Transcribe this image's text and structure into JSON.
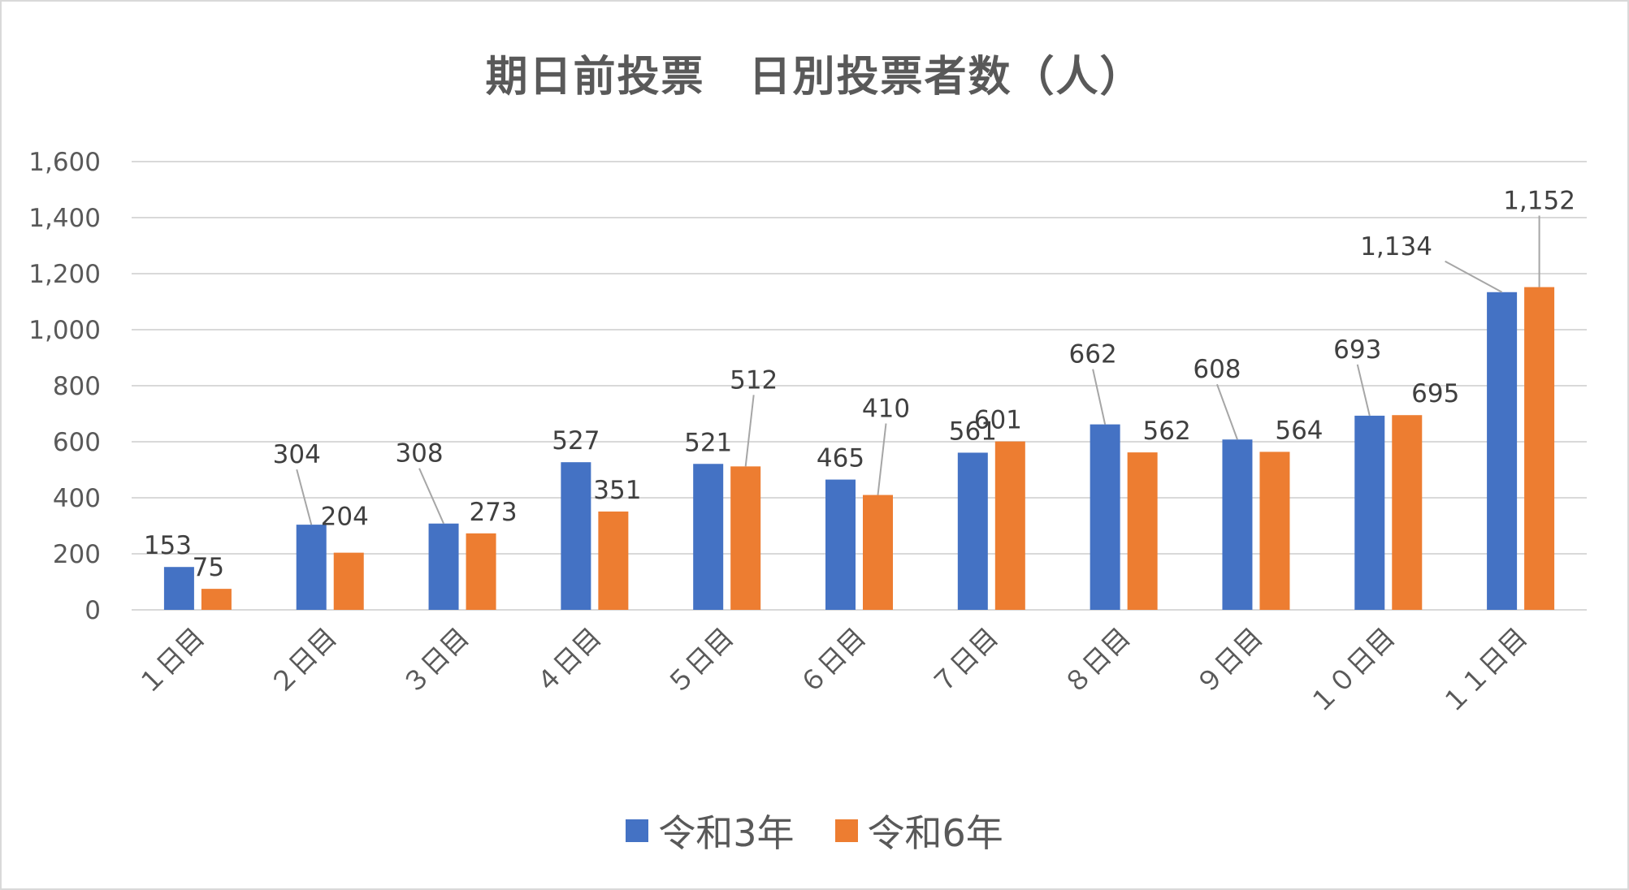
{
  "chart_data": {
    "type": "bar",
    "title": "期日前投票　日別投票者数（人）",
    "categories": [
      "１日目",
      "２日目",
      "３日目",
      "４日目",
      "５日目",
      "６日目",
      "７日目",
      "８日目",
      "９日目",
      "１０日目",
      "１１日目"
    ],
    "series": [
      {
        "name": "令和3年",
        "color": "#4472c4",
        "values": [
          153,
          304,
          308,
          527,
          521,
          465,
          561,
          662,
          608,
          693,
          1134
        ]
      },
      {
        "name": "令和6年",
        "color": "#ed7d31",
        "values": [
          75,
          204,
          273,
          351,
          512,
          410,
          601,
          562,
          564,
          695,
          1152
        ]
      }
    ],
    "ylim": [
      0,
      1600
    ],
    "yticks": [
      0,
      200,
      400,
      600,
      800,
      1000,
      1200,
      1400,
      1600
    ],
    "ytick_labels": [
      "0",
      "200",
      "400",
      "600",
      "800",
      "1,000",
      "1,200",
      "1,400",
      "1,600"
    ],
    "grid": true,
    "legend": "bottom",
    "data_labels": true
  }
}
